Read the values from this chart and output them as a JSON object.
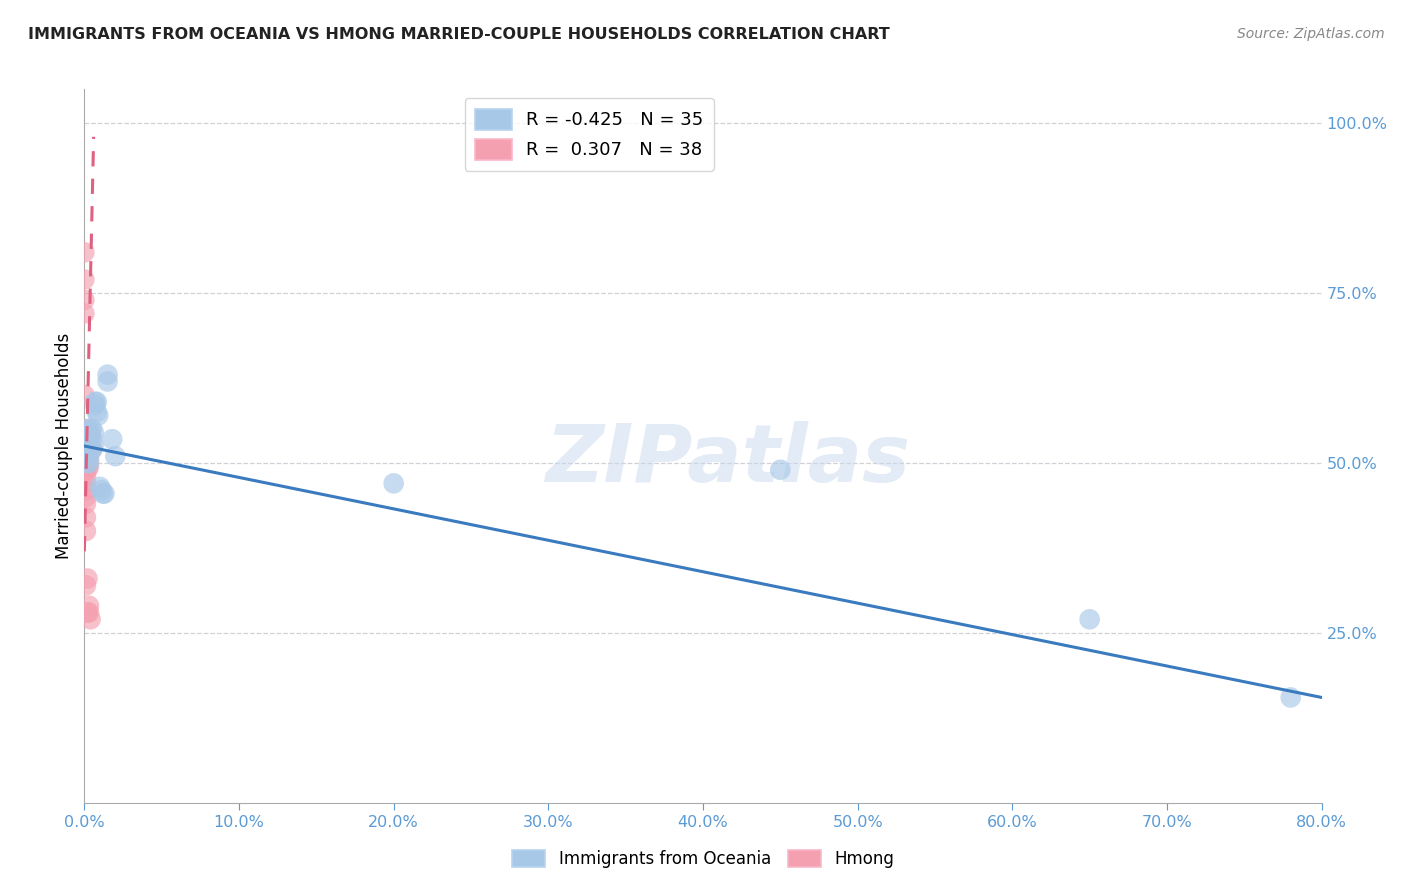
{
  "title": "IMMIGRANTS FROM OCEANIA VS HMONG MARRIED-COUPLE HOUSEHOLDS CORRELATION CHART",
  "source": "Source: ZipAtlas.com",
  "ylabel": "Married-couple Households",
  "xmin": 0.0,
  "xmax": 0.8,
  "ymin": 0.0,
  "ymax": 1.05,
  "blue_R": -0.425,
  "blue_N": 35,
  "pink_R": 0.307,
  "pink_N": 38,
  "blue_color": "#a8c8e8",
  "pink_color": "#f4a0b0",
  "blue_line_color": "#3a7abf",
  "pink_line_color": "#e06080",
  "watermark": "ZIPatlas",
  "blue_line_x0": 0.0,
  "blue_line_y0": 0.525,
  "blue_line_x1": 0.8,
  "blue_line_y1": 0.155,
  "pink_line_x0": 0.0,
  "pink_line_y0": 0.37,
  "pink_line_x1": 0.006,
  "pink_line_y1": 0.98,
  "blue_x": [
    0.001,
    0.001,
    0.001,
    0.002,
    0.002,
    0.002,
    0.002,
    0.003,
    0.003,
    0.003,
    0.003,
    0.004,
    0.004,
    0.005,
    0.005,
    0.005,
    0.006,
    0.006,
    0.007,
    0.007,
    0.008,
    0.008,
    0.009,
    0.01,
    0.011,
    0.012,
    0.013,
    0.015,
    0.015,
    0.018,
    0.02,
    0.2,
    0.45,
    0.65,
    0.78
  ],
  "blue_y": [
    0.545,
    0.535,
    0.525,
    0.55,
    0.535,
    0.52,
    0.5,
    0.54,
    0.525,
    0.51,
    0.5,
    0.545,
    0.52,
    0.55,
    0.535,
    0.52,
    0.545,
    0.525,
    0.59,
    0.585,
    0.59,
    0.575,
    0.57,
    0.465,
    0.46,
    0.455,
    0.455,
    0.63,
    0.62,
    0.535,
    0.51,
    0.47,
    0.49,
    0.27,
    0.155
  ],
  "pink_x": [
    0.0,
    0.0,
    0.0,
    0.0,
    0.0,
    0.0,
    0.0,
    0.001,
    0.001,
    0.001,
    0.001,
    0.001,
    0.001,
    0.001,
    0.001,
    0.001,
    0.001,
    0.001,
    0.001,
    0.001,
    0.002,
    0.002,
    0.002,
    0.002,
    0.002,
    0.002,
    0.002,
    0.003,
    0.003,
    0.003,
    0.003,
    0.003,
    0.003,
    0.003,
    0.004,
    0.004,
    0.004,
    0.005
  ],
  "pink_y": [
    0.81,
    0.77,
    0.74,
    0.72,
    0.6,
    0.55,
    0.52,
    0.52,
    0.51,
    0.5,
    0.5,
    0.49,
    0.48,
    0.47,
    0.46,
    0.45,
    0.44,
    0.42,
    0.4,
    0.32,
    0.535,
    0.525,
    0.515,
    0.51,
    0.49,
    0.33,
    0.28,
    0.535,
    0.525,
    0.515,
    0.505,
    0.495,
    0.29,
    0.28,
    0.54,
    0.52,
    0.27,
    0.52
  ],
  "grid_color": "#d0d0d8",
  "background_color": "#ffffff"
}
